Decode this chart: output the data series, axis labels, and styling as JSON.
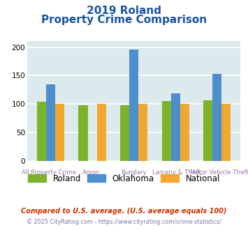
{
  "title_line1": "2019 Roland",
  "title_line2": "Property Crime Comparison",
  "categories": [
    "All Property Crime",
    "Arson",
    "Burglary",
    "Larceny & Theft",
    "Motor Vehicle Theft"
  ],
  "cat_line1": [
    "All Property Crime",
    "Arson",
    "Burglary",
    "Larceny & Theft",
    "Motor Vehicle Theft"
  ],
  "cat_line2": [
    "",
    "",
    "",
    "",
    ""
  ],
  "roland": [
    104,
    98,
    98,
    105,
    106
  ],
  "oklahoma": [
    135,
    0,
    196,
    119,
    153
  ],
  "national": [
    100,
    100,
    100,
    100,
    100
  ],
  "roland_color": "#7db32b",
  "oklahoma_color": "#4d8fcc",
  "national_color": "#f0a830",
  "bg_color": "#dce9ed",
  "title_color": "#1a52a0",
  "xlabel_color": "#9977aa",
  "footer_color1": "#cc3300",
  "footer_color2": "#7777aa",
  "ylim": [
    0,
    210
  ],
  "yticks": [
    0,
    50,
    100,
    150,
    200
  ],
  "bar_width": 0.22,
  "grid_color": "#ffffff",
  "legend_labels": [
    "Roland",
    "Oklahoma",
    "National"
  ],
  "footnote1": "Compared to U.S. average. (U.S. average equals 100)",
  "footnote2": "© 2025 CityRating.com - https://www.cityrating.com/crime-statistics/"
}
